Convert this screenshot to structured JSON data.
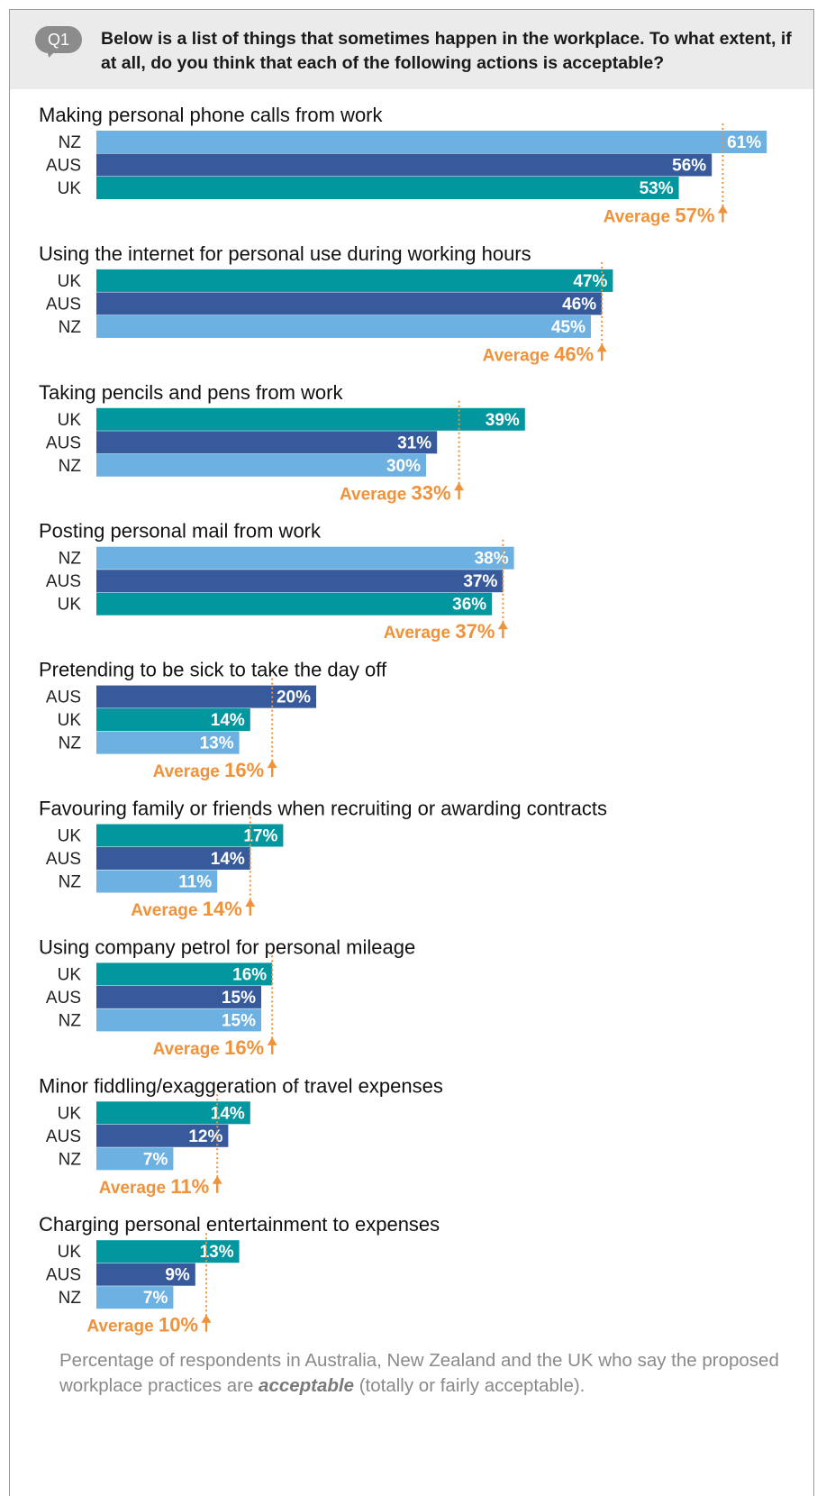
{
  "header": {
    "badge": "Q1",
    "question": "Below is a list of things that sometimes happen in the workplace. To what extent, if at all, do you think that each of the following actions is acceptable?"
  },
  "colors": {
    "UK": "#02969e",
    "AUS": "#365a9c",
    "NZ": "#6cb1e1",
    "average": "#f0923a",
    "header_bg": "#ebebeb",
    "badge_bg": "#8c8c8c"
  },
  "average_label": "Average",
  "chart_data": {
    "type": "bar",
    "orientation": "horizontal",
    "unit": "%",
    "groups": [
      {
        "title": "Making personal phone calls from work",
        "average": 57,
        "bars": [
          {
            "country": "NZ",
            "value": 61
          },
          {
            "country": "AUS",
            "value": 56
          },
          {
            "country": "UK",
            "value": 53
          }
        ]
      },
      {
        "title": "Using the internet for personal use during working hours",
        "average": 46,
        "bars": [
          {
            "country": "UK",
            "value": 47
          },
          {
            "country": "AUS",
            "value": 46
          },
          {
            "country": "NZ",
            "value": 45
          }
        ]
      },
      {
        "title": "Taking pencils and pens from work",
        "average": 33,
        "bars": [
          {
            "country": "UK",
            "value": 39
          },
          {
            "country": "AUS",
            "value": 31
          },
          {
            "country": "NZ",
            "value": 30
          }
        ]
      },
      {
        "title": "Posting personal mail from work",
        "average": 37,
        "bars": [
          {
            "country": "NZ",
            "value": 38
          },
          {
            "country": "AUS",
            "value": 37
          },
          {
            "country": "UK",
            "value": 36
          }
        ]
      },
      {
        "title": "Pretending to be sick to take the day off",
        "average": 16,
        "bars": [
          {
            "country": "AUS",
            "value": 20
          },
          {
            "country": "UK",
            "value": 14
          },
          {
            "country": "NZ",
            "value": 13
          }
        ]
      },
      {
        "title": "Favouring family or friends when recruiting or awarding contracts",
        "average": 14,
        "bars": [
          {
            "country": "UK",
            "value": 17
          },
          {
            "country": "AUS",
            "value": 14
          },
          {
            "country": "NZ",
            "value": 11
          }
        ]
      },
      {
        "title": "Using company petrol for personal mileage",
        "average": 16,
        "bars": [
          {
            "country": "UK",
            "value": 16
          },
          {
            "country": "AUS",
            "value": 15
          },
          {
            "country": "NZ",
            "value": 15
          }
        ]
      },
      {
        "title": "Minor fiddling/exaggeration of travel expenses",
        "average": 11,
        "bars": [
          {
            "country": "UK",
            "value": 14
          },
          {
            "country": "AUS",
            "value": 12
          },
          {
            "country": "NZ",
            "value": 7
          }
        ]
      },
      {
        "title": "Charging personal entertainment to expenses",
        "average": 10,
        "bars": [
          {
            "country": "UK",
            "value": 13
          },
          {
            "country": "AUS",
            "value": 9
          },
          {
            "country": "NZ",
            "value": 7
          }
        ]
      }
    ]
  },
  "footnote": {
    "before": "Percentage of respondents in Australia, New Zealand and the UK who say the proposed workplace practices are ",
    "emphasis": "acceptable",
    "after": " (totally or fairly acceptable)."
  }
}
